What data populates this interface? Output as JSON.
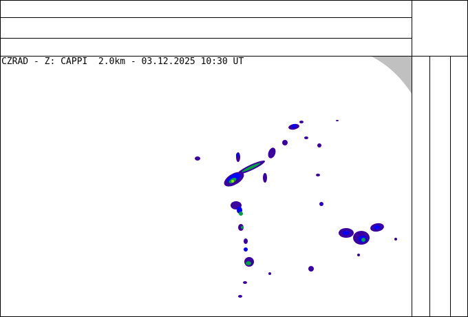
{
  "map": {
    "title": "CZRAD - Z: CAPPI  2.0km - 03.12.2025 10:30 UT",
    "colors": {
      "weak": "#3a00a0",
      "light": "#0000ff",
      "moderate": "#00a040",
      "strong": "#a0e000",
      "out_of_range": "#c0c0c0"
    }
  }
}
